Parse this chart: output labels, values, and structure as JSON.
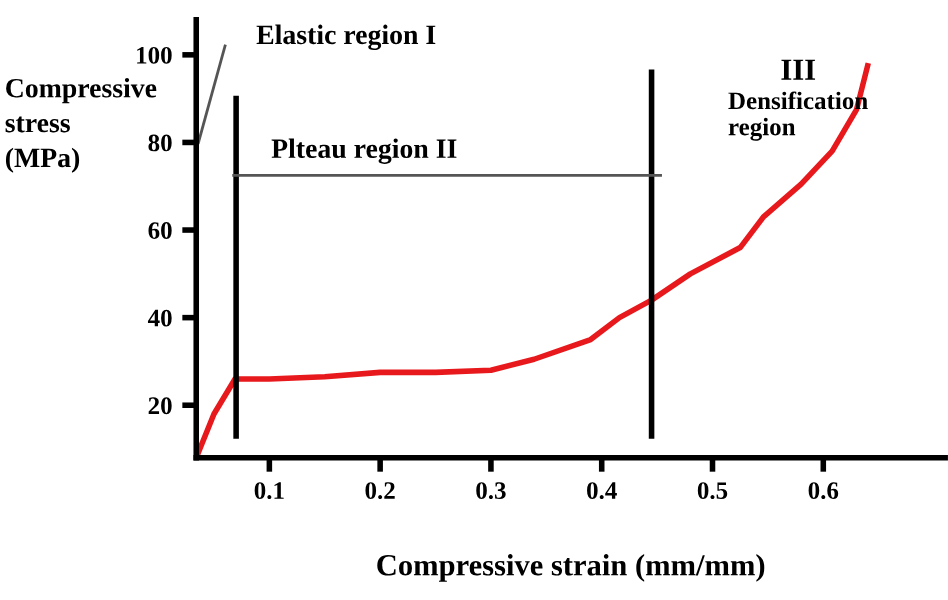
{
  "chart_data": {
    "type": "line",
    "xlabel": "Compressive strain (mm/mm)",
    "ylabel": "Compressive stress (MPa)",
    "x": [
      0.034,
      0.05,
      0.069,
      0.1,
      0.15,
      0.2,
      0.25,
      0.3,
      0.339,
      0.39,
      0.416,
      0.445,
      0.48,
      0.525,
      0.546,
      0.58,
      0.608,
      0.63,
      0.64
    ],
    "series": [
      {
        "color": "#e8191c",
        "values": [
          8,
          18,
          26,
          26,
          26.5,
          27.5,
          27.5,
          28,
          30.5,
          35,
          40,
          44,
          50,
          56,
          63,
          70.5,
          78,
          87.5,
          97.5
        ]
      }
    ],
    "xlim": [
      0.034,
      0.71
    ],
    "ylim": [
      8,
      108
    ],
    "xticks": [
      0.1,
      0.2,
      0.3,
      0.4,
      0.5,
      0.6
    ],
    "yticks": [
      20,
      40,
      60,
      80,
      100
    ],
    "grid": false,
    "marker": "none",
    "line_style": "solid",
    "ref_lines": [
      {
        "axis": "x",
        "value": 0.07,
        "color": "#000000"
      },
      {
        "axis": "x",
        "value": 0.445,
        "color": "#000000"
      },
      {
        "axis": "y",
        "value": 72.5,
        "color": "#555555"
      }
    ],
    "annotations": [
      "Elastic region I",
      "Plteau region II",
      "III",
      "Densification region"
    ]
  }
}
